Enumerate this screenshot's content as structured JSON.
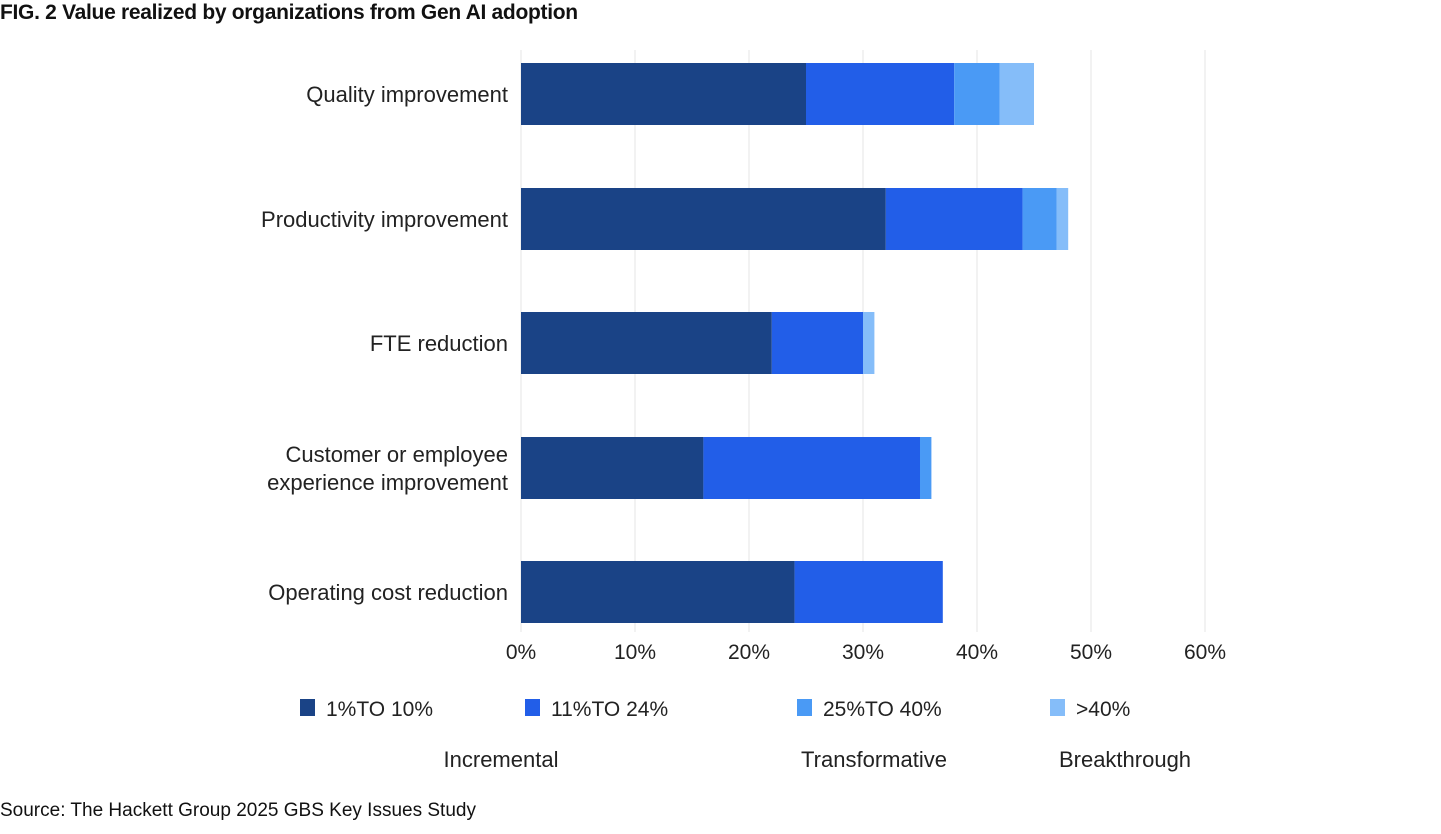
{
  "title": "FIG. 2   Value realized by organizations from Gen AI adoption",
  "source": "Source:  The Hackett Group 2025 GBS Key Issues Study",
  "chart_data": {
    "type": "bar",
    "orientation": "horizontal",
    "stacked": true,
    "categories": [
      "Quality improvement",
      "Productivity improvement",
      "FTE reduction",
      "Customer or employee experience improvement",
      "Operating cost reduction"
    ],
    "category_lines": [
      [
        "Quality improvement"
      ],
      [
        "Productivity improvement"
      ],
      [
        "FTE reduction"
      ],
      [
        "Customer or employee",
        "experience improvement"
      ],
      [
        "Operating cost reduction"
      ]
    ],
    "series": [
      {
        "name": "1%TO 10%",
        "color": "#1a4386",
        "values": [
          25,
          32,
          22,
          16,
          24
        ]
      },
      {
        "name": "11%TO 24%",
        "color": "#225ee8",
        "values": [
          13,
          12,
          8,
          19,
          13
        ]
      },
      {
        "name": "25%TO 40%",
        "color": "#4a9af5",
        "values": [
          4,
          3,
          0,
          1,
          0
        ]
      },
      {
        "name": ">40%",
        "color": "#85bdf9",
        "values": [
          3,
          1,
          1,
          0,
          0
        ]
      }
    ],
    "xlim": [
      0,
      60
    ],
    "xticks": [
      "0%",
      "10%",
      "20%",
      "30%",
      "40%",
      "50%",
      "60%"
    ],
    "grid": true,
    "legend_position": "bottom",
    "legend_groups": [
      "Incremental",
      "Transformative",
      "Breakthrough"
    ]
  }
}
